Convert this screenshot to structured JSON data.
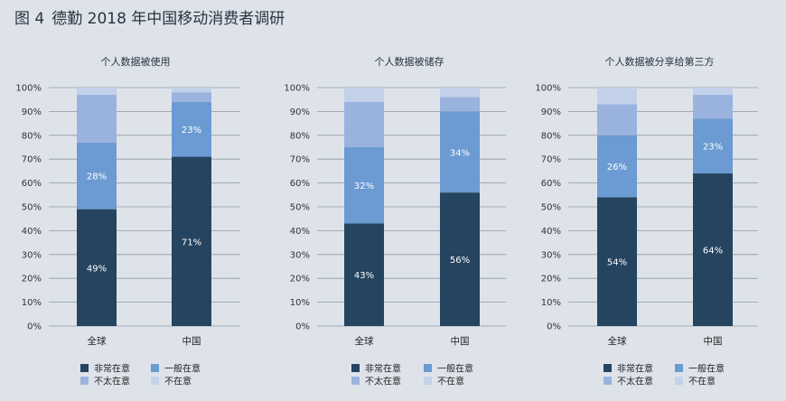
{
  "figure": {
    "label": "图 4",
    "title": "德勤 2018 年中国移动消费者调研"
  },
  "colors": {
    "background": "#dee3ea",
    "非常在意": "#25445f",
    "一般在意": "#6b9bd2",
    "不太在意": "#9ab3de",
    "不在意": "#c4d1eb",
    "grid": "#8f98a4"
  },
  "legend": [
    "非常在意",
    "一般在意",
    "不太在意",
    "不在意"
  ],
  "chart_data": [
    {
      "type": "bar",
      "stacked": true,
      "title": "个人数据被使用",
      "categories": [
        "全球",
        "中国"
      ],
      "ylim": [
        0,
        100
      ],
      "yticks": [
        "0%",
        "10%",
        "20%",
        "30%",
        "40%",
        "50%",
        "60%",
        "70%",
        "80%",
        "90%",
        "100%"
      ],
      "series": [
        {
          "name": "非常在意",
          "values": [
            49,
            71
          ],
          "labels": [
            "49%",
            "71%"
          ]
        },
        {
          "name": "一般在意",
          "values": [
            28,
            23
          ],
          "labels": [
            "28%",
            "23%"
          ]
        },
        {
          "name": "不太在意",
          "values": [
            20,
            4
          ],
          "labels": [
            "",
            ""
          ]
        },
        {
          "name": "不在意",
          "values": [
            3,
            2
          ],
          "labels": [
            "",
            ""
          ]
        }
      ]
    },
    {
      "type": "bar",
      "stacked": true,
      "title": "个人数据被储存",
      "categories": [
        "全球",
        "中国"
      ],
      "ylim": [
        0,
        100
      ],
      "yticks": [
        "0%",
        "10%",
        "20%",
        "30%",
        "40%",
        "50%",
        "60%",
        "70%",
        "80%",
        "90%",
        "100%"
      ],
      "series": [
        {
          "name": "非常在意",
          "values": [
            43,
            56
          ],
          "labels": [
            "43%",
            "56%"
          ]
        },
        {
          "name": "一般在意",
          "values": [
            32,
            34
          ],
          "labels": [
            "32%",
            "34%"
          ]
        },
        {
          "name": "不太在意",
          "values": [
            19,
            6
          ],
          "labels": [
            "",
            ""
          ]
        },
        {
          "name": "不在意",
          "values": [
            6,
            4
          ],
          "labels": [
            "",
            ""
          ]
        }
      ]
    },
    {
      "type": "bar",
      "stacked": true,
      "title": "个人数据被分享给第三方",
      "categories": [
        "全球",
        "中国"
      ],
      "ylim": [
        0,
        100
      ],
      "yticks": [
        "0%",
        "10%",
        "20%",
        "30%",
        "40%",
        "50%",
        "60%",
        "70%",
        "80%",
        "90%",
        "100%"
      ],
      "series": [
        {
          "name": "非常在意",
          "values": [
            54,
            64
          ],
          "labels": [
            "54%",
            "64%"
          ]
        },
        {
          "name": "一般在意",
          "values": [
            26,
            23
          ],
          "labels": [
            "26%",
            "23%"
          ]
        },
        {
          "name": "不太在意",
          "values": [
            13,
            10
          ],
          "labels": [
            "",
            ""
          ]
        },
        {
          "name": "不在意",
          "values": [
            7,
            3
          ],
          "labels": [
            "",
            ""
          ]
        }
      ]
    }
  ]
}
